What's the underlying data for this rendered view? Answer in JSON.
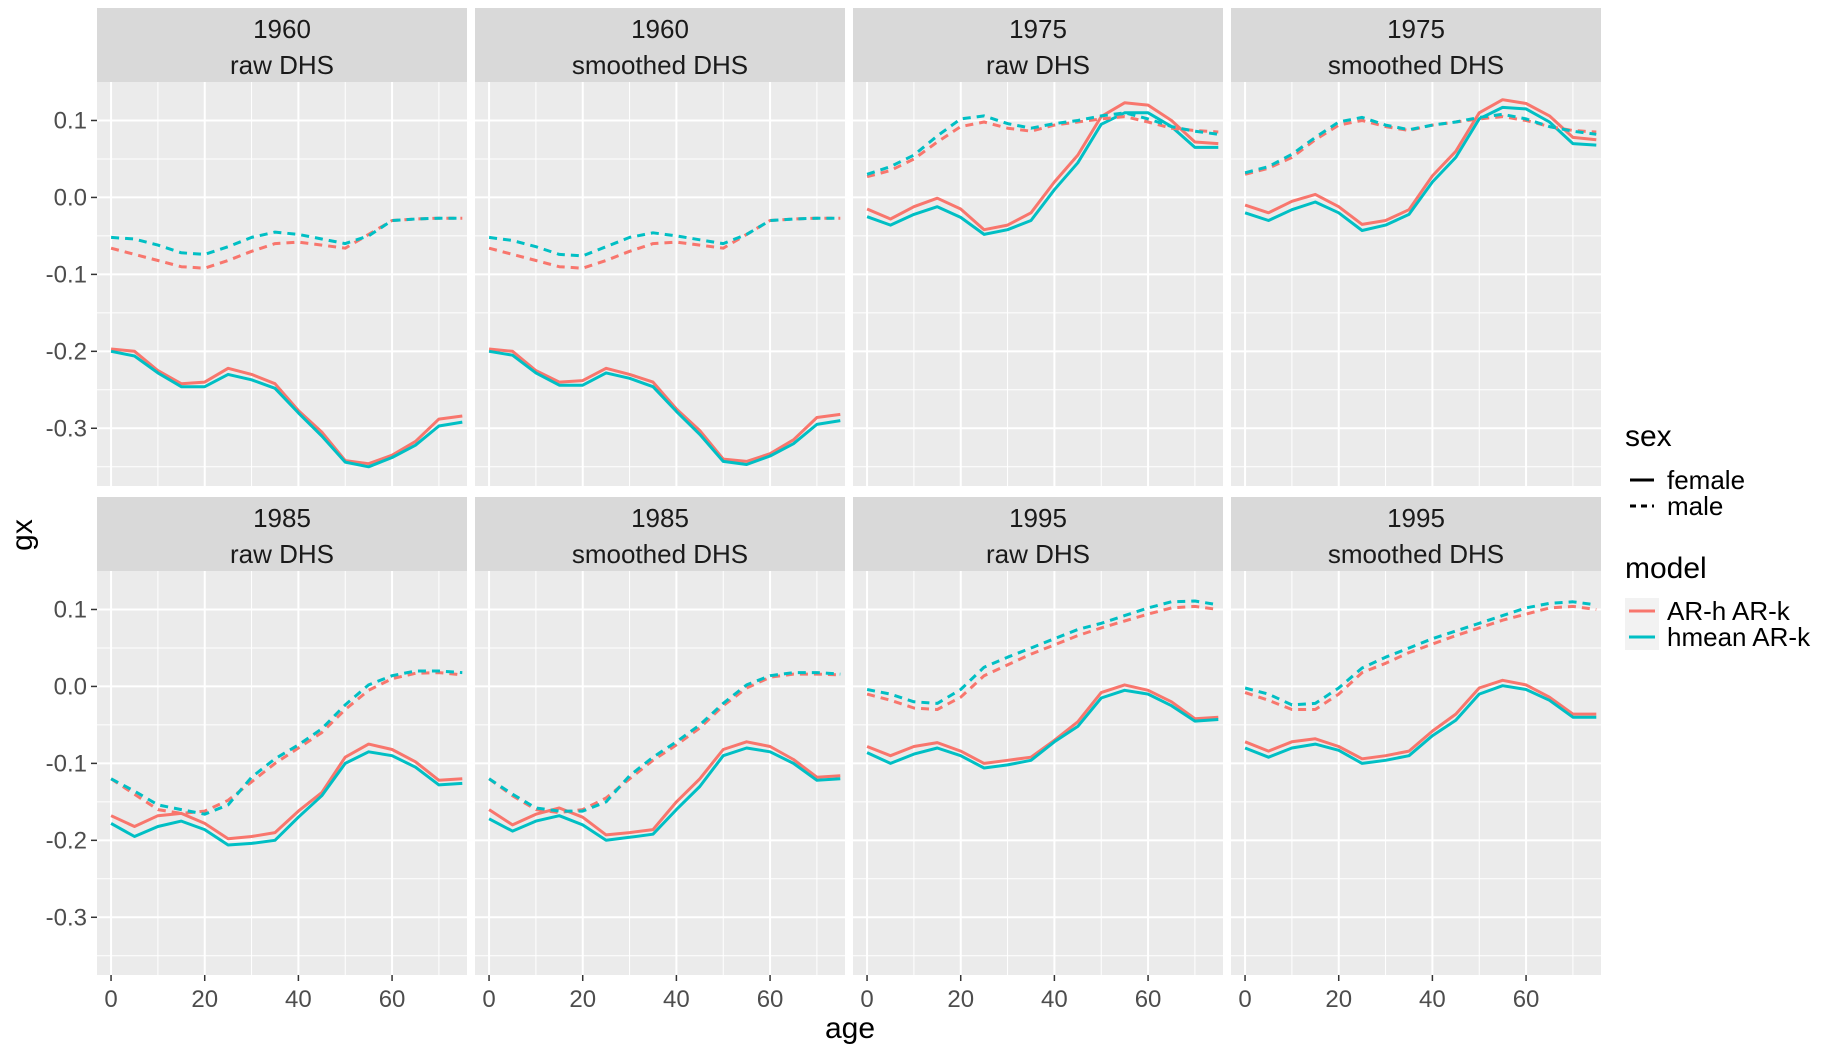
{
  "chart_data": {
    "type": "line",
    "xlabel": "age",
    "ylabel": "gx",
    "xlim": [
      -3,
      76
    ],
    "ylim": [
      -0.375,
      0.15
    ],
    "x_ticks": [
      0,
      20,
      40,
      60
    ],
    "y_ticks": [
      0.1,
      0.0,
      -0.1,
      -0.2,
      -0.3
    ],
    "y_tick_labels": [
      "0.1",
      "0.0",
      "-0.1",
      "-0.2",
      "-0.3"
    ],
    "x_tick_labels": [
      "0",
      "20",
      "40",
      "60"
    ],
    "grid": true,
    "legend_placement": "right",
    "legend": {
      "sex": {
        "title": "sex",
        "entries": [
          {
            "label": "female",
            "linetype": "solid"
          },
          {
            "label": "male",
            "linetype": "dashed"
          }
        ]
      },
      "model": {
        "title": "model",
        "entries": [
          {
            "label": "AR-h AR-k",
            "color": "#F8766D"
          },
          {
            "label": "hmean AR-k",
            "color": "#00BFC4"
          }
        ]
      }
    },
    "x": [
      0,
      5,
      10,
      15,
      20,
      25,
      30,
      35,
      40,
      45,
      50,
      55,
      60,
      65,
      70,
      75
    ],
    "panels": [
      {
        "strip": [
          "1960",
          "raw DHS"
        ],
        "series": [
          {
            "model": "AR-h AR-k",
            "sex": "female",
            "values": [
              -0.197,
              -0.2,
              -0.225,
              -0.242,
              -0.24,
              -0.222,
              -0.23,
              -0.242,
              -0.277,
              -0.305,
              -0.342,
              -0.346,
              -0.335,
              -0.317,
              -0.288,
              -0.284
            ]
          },
          {
            "model": "hmean AR-k",
            "sex": "female",
            "values": [
              -0.2,
              -0.206,
              -0.228,
              -0.246,
              -0.246,
              -0.23,
              -0.237,
              -0.248,
              -0.28,
              -0.31,
              -0.344,
              -0.35,
              -0.338,
              -0.322,
              -0.297,
              -0.292
            ]
          },
          {
            "model": "AR-h AR-k",
            "sex": "male",
            "values": [
              -0.066,
              -0.074,
              -0.082,
              -0.09,
              -0.092,
              -0.082,
              -0.07,
              -0.06,
              -0.058,
              -0.062,
              -0.066,
              -0.048,
              -0.03,
              -0.028,
              -0.027,
              -0.027
            ]
          },
          {
            "model": "hmean AR-k",
            "sex": "male",
            "values": [
              -0.052,
              -0.054,
              -0.062,
              -0.072,
              -0.074,
              -0.064,
              -0.052,
              -0.045,
              -0.048,
              -0.054,
              -0.06,
              -0.05,
              -0.03,
              -0.028,
              -0.027,
              -0.027
            ]
          }
        ]
      },
      {
        "strip": [
          "1960",
          "smoothed DHS"
        ],
        "series": [
          {
            "model": "AR-h AR-k",
            "sex": "female",
            "values": [
              -0.197,
              -0.2,
              -0.225,
              -0.24,
              -0.238,
              -0.222,
              -0.23,
              -0.24,
              -0.275,
              -0.303,
              -0.34,
              -0.343,
              -0.333,
              -0.315,
              -0.286,
              -0.282
            ]
          },
          {
            "model": "hmean AR-k",
            "sex": "female",
            "values": [
              -0.2,
              -0.205,
              -0.228,
              -0.244,
              -0.244,
              -0.228,
              -0.235,
              -0.246,
              -0.278,
              -0.308,
              -0.343,
              -0.347,
              -0.336,
              -0.32,
              -0.295,
              -0.29
            ]
          },
          {
            "model": "AR-h AR-k",
            "sex": "male",
            "values": [
              -0.066,
              -0.074,
              -0.082,
              -0.09,
              -0.092,
              -0.082,
              -0.07,
              -0.06,
              -0.058,
              -0.062,
              -0.066,
              -0.048,
              -0.03,
              -0.028,
              -0.027,
              -0.027
            ]
          },
          {
            "model": "hmean AR-k",
            "sex": "male",
            "values": [
              -0.052,
              -0.056,
              -0.064,
              -0.074,
              -0.076,
              -0.064,
              -0.052,
              -0.046,
              -0.05,
              -0.055,
              -0.06,
              -0.048,
              -0.03,
              -0.028,
              -0.027,
              -0.027
            ]
          }
        ]
      },
      {
        "strip": [
          "1975",
          "raw DHS"
        ],
        "series": [
          {
            "model": "AR-h AR-k",
            "sex": "female",
            "values": [
              -0.015,
              -0.028,
              -0.012,
              -0.001,
              -0.015,
              -0.042,
              -0.036,
              -0.02,
              0.02,
              0.055,
              0.105,
              0.123,
              0.12,
              0.1,
              0.072,
              0.07
            ]
          },
          {
            "model": "hmean AR-k",
            "sex": "female",
            "values": [
              -0.025,
              -0.036,
              -0.022,
              -0.012,
              -0.026,
              -0.048,
              -0.042,
              -0.03,
              0.01,
              0.045,
              0.095,
              0.11,
              0.11,
              0.092,
              0.065,
              0.065
            ]
          },
          {
            "model": "AR-h AR-k",
            "sex": "male",
            "values": [
              0.027,
              0.035,
              0.05,
              0.072,
              0.092,
              0.098,
              0.09,
              0.086,
              0.094,
              0.098,
              0.102,
              0.105,
              0.098,
              0.09,
              0.087,
              0.085
            ]
          },
          {
            "model": "hmean AR-k",
            "sex": "male",
            "values": [
              0.03,
              0.04,
              0.055,
              0.08,
              0.102,
              0.106,
              0.096,
              0.09,
              0.096,
              0.1,
              0.106,
              0.11,
              0.102,
              0.092,
              0.086,
              0.082
            ]
          }
        ]
      },
      {
        "strip": [
          "1975",
          "smoothed DHS"
        ],
        "series": [
          {
            "model": "AR-h AR-k",
            "sex": "female",
            "values": [
              -0.01,
              -0.02,
              -0.005,
              0.004,
              -0.012,
              -0.035,
              -0.03,
              -0.016,
              0.028,
              0.06,
              0.11,
              0.127,
              0.122,
              0.106,
              0.078,
              0.075
            ]
          },
          {
            "model": "hmean AR-k",
            "sex": "female",
            "values": [
              -0.02,
              -0.03,
              -0.016,
              -0.006,
              -0.02,
              -0.043,
              -0.036,
              -0.022,
              0.02,
              0.052,
              0.102,
              0.117,
              0.115,
              0.098,
              0.07,
              0.068
            ]
          },
          {
            "model": "AR-h AR-k",
            "sex": "male",
            "values": [
              0.03,
              0.038,
              0.052,
              0.075,
              0.094,
              0.1,
              0.092,
              0.087,
              0.094,
              0.098,
              0.102,
              0.105,
              0.1,
              0.092,
              0.087,
              0.085
            ]
          },
          {
            "model": "hmean AR-k",
            "sex": "male",
            "values": [
              0.032,
              0.04,
              0.056,
              0.078,
              0.098,
              0.104,
              0.094,
              0.088,
              0.094,
              0.098,
              0.104,
              0.108,
              0.102,
              0.092,
              0.086,
              0.082
            ]
          }
        ]
      },
      {
        "strip": [
          "1985",
          "raw DHS"
        ],
        "series": [
          {
            "model": "AR-h AR-k",
            "sex": "female",
            "values": [
              -0.168,
              -0.182,
              -0.168,
              -0.165,
              -0.178,
              -0.198,
              -0.195,
              -0.19,
              -0.162,
              -0.138,
              -0.092,
              -0.075,
              -0.082,
              -0.098,
              -0.122,
              -0.12
            ]
          },
          {
            "model": "hmean AR-k",
            "sex": "female",
            "values": [
              -0.178,
              -0.195,
              -0.182,
              -0.175,
              -0.186,
              -0.206,
              -0.204,
              -0.2,
              -0.17,
              -0.142,
              -0.1,
              -0.085,
              -0.09,
              -0.105,
              -0.128,
              -0.126
            ]
          },
          {
            "model": "AR-h AR-k",
            "sex": "male",
            "values": [
              -0.12,
              -0.14,
              -0.16,
              -0.165,
              -0.162,
              -0.148,
              -0.124,
              -0.1,
              -0.08,
              -0.06,
              -0.03,
              -0.005,
              0.01,
              0.017,
              0.018,
              0.015
            ]
          },
          {
            "model": "hmean AR-k",
            "sex": "male",
            "values": [
              -0.12,
              -0.136,
              -0.154,
              -0.16,
              -0.166,
              -0.154,
              -0.118,
              -0.094,
              -0.076,
              -0.055,
              -0.024,
              0.002,
              0.014,
              0.02,
              0.02,
              0.018
            ]
          }
        ]
      },
      {
        "strip": [
          "1985",
          "smoothed DHS"
        ],
        "series": [
          {
            "model": "AR-h AR-k",
            "sex": "female",
            "values": [
              -0.16,
              -0.18,
              -0.166,
              -0.158,
              -0.17,
              -0.193,
              -0.19,
              -0.186,
              -0.15,
              -0.12,
              -0.082,
              -0.072,
              -0.078,
              -0.095,
              -0.118,
              -0.116
            ]
          },
          {
            "model": "hmean AR-k",
            "sex": "female",
            "values": [
              -0.172,
              -0.188,
              -0.175,
              -0.168,
              -0.18,
              -0.2,
              -0.196,
              -0.192,
              -0.16,
              -0.13,
              -0.09,
              -0.08,
              -0.085,
              -0.1,
              -0.122,
              -0.12
            ]
          },
          {
            "model": "AR-h AR-k",
            "sex": "male",
            "values": [
              -0.12,
              -0.142,
              -0.16,
              -0.164,
              -0.16,
              -0.145,
              -0.12,
              -0.096,
              -0.076,
              -0.054,
              -0.025,
              -0.002,
              0.012,
              0.016,
              0.016,
              0.015
            ]
          },
          {
            "model": "hmean AR-k",
            "sex": "male",
            "values": [
              -0.12,
              -0.14,
              -0.158,
              -0.162,
              -0.162,
              -0.15,
              -0.116,
              -0.092,
              -0.072,
              -0.05,
              -0.022,
              0.002,
              0.014,
              0.018,
              0.018,
              0.016
            ]
          }
        ]
      },
      {
        "strip": [
          "1995",
          "raw DHS"
        ],
        "series": [
          {
            "model": "AR-h AR-k",
            "sex": "female",
            "values": [
              -0.078,
              -0.09,
              -0.078,
              -0.073,
              -0.084,
              -0.1,
              -0.096,
              -0.092,
              -0.07,
              -0.046,
              -0.008,
              0.002,
              -0.005,
              -0.02,
              -0.042,
              -0.04
            ]
          },
          {
            "model": "hmean AR-k",
            "sex": "female",
            "values": [
              -0.086,
              -0.1,
              -0.088,
              -0.08,
              -0.09,
              -0.106,
              -0.102,
              -0.096,
              -0.072,
              -0.052,
              -0.015,
              -0.005,
              -0.01,
              -0.025,
              -0.045,
              -0.043
            ]
          },
          {
            "model": "AR-h AR-k",
            "sex": "male",
            "values": [
              -0.01,
              -0.018,
              -0.028,
              -0.03,
              -0.014,
              0.014,
              0.028,
              0.042,
              0.054,
              0.066,
              0.076,
              0.085,
              0.094,
              0.102,
              0.104,
              0.1
            ]
          },
          {
            "model": "hmean AR-k",
            "sex": "male",
            "values": [
              -0.004,
              -0.01,
              -0.02,
              -0.022,
              -0.004,
              0.025,
              0.038,
              0.05,
              0.062,
              0.074,
              0.082,
              0.092,
              0.102,
              0.11,
              0.111,
              0.106
            ]
          }
        ]
      },
      {
        "strip": [
          "1995",
          "smoothed DHS"
        ],
        "series": [
          {
            "model": "AR-h AR-k",
            "sex": "female",
            "values": [
              -0.072,
              -0.084,
              -0.072,
              -0.068,
              -0.078,
              -0.094,
              -0.09,
              -0.084,
              -0.058,
              -0.036,
              -0.002,
              0.008,
              0.002,
              -0.014,
              -0.036,
              -0.036
            ]
          },
          {
            "model": "hmean AR-k",
            "sex": "female",
            "values": [
              -0.08,
              -0.092,
              -0.08,
              -0.075,
              -0.083,
              -0.1,
              -0.096,
              -0.09,
              -0.064,
              -0.044,
              -0.01,
              0.001,
              -0.004,
              -0.018,
              -0.04,
              -0.04
            ]
          },
          {
            "model": "AR-h AR-k",
            "sex": "male",
            "values": [
              -0.008,
              -0.018,
              -0.03,
              -0.03,
              -0.01,
              0.018,
              0.03,
              0.044,
              0.055,
              0.066,
              0.076,
              0.086,
              0.094,
              0.102,
              0.104,
              0.1
            ]
          },
          {
            "model": "hmean AR-k",
            "sex": "male",
            "values": [
              -0.002,
              -0.01,
              -0.024,
              -0.022,
              -0.002,
              0.024,
              0.038,
              0.05,
              0.062,
              0.072,
              0.082,
              0.092,
              0.102,
              0.108,
              0.11,
              0.106
            ]
          }
        ]
      }
    ]
  }
}
